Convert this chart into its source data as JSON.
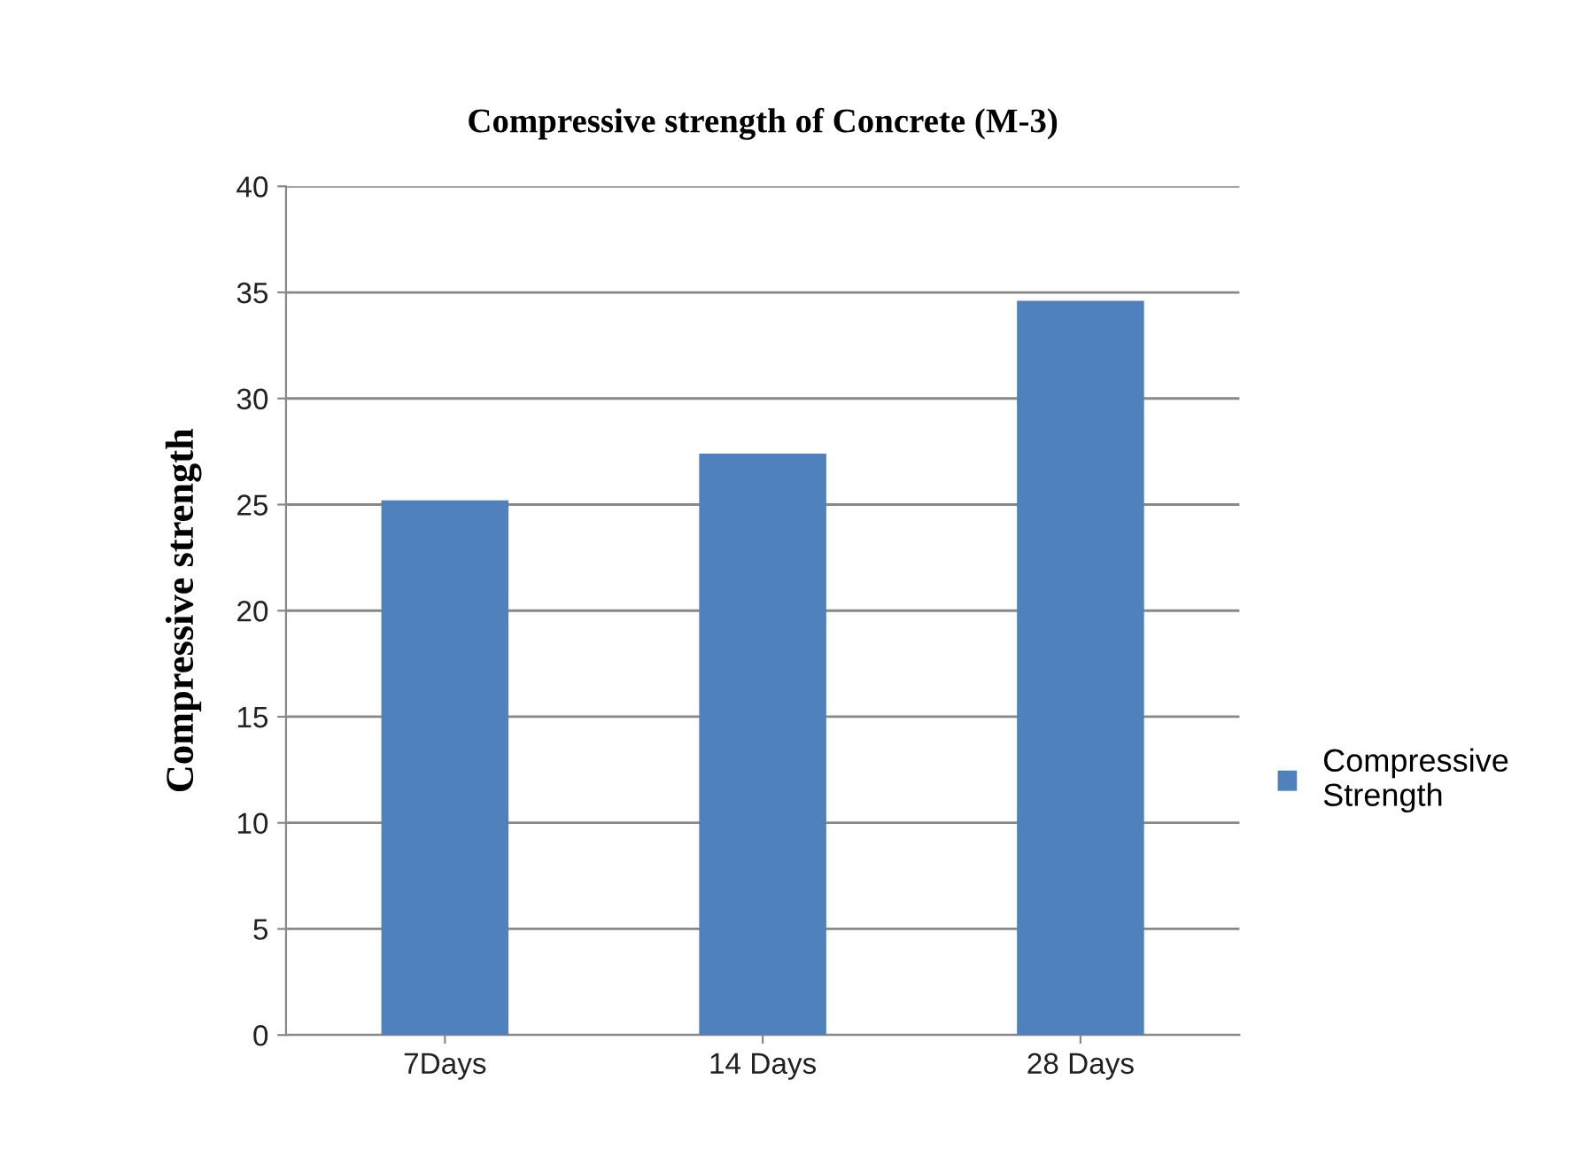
{
  "chart_data": {
    "type": "bar",
    "title": "Compressive strength of Concrete (M-3)",
    "ylabel": "Compressive strength",
    "categories": [
      "7Days",
      "14 Days",
      "28 Days"
    ],
    "series": [
      {
        "name": "Compressive Strength",
        "color": "#4f81bd",
        "values": [
          25.2,
          27.4,
          34.6
        ]
      }
    ],
    "ylim": [
      0,
      40
    ],
    "yticks": [
      0,
      5,
      10,
      15,
      20,
      25,
      30,
      35,
      40
    ],
    "grid": "y",
    "legend": "right"
  }
}
